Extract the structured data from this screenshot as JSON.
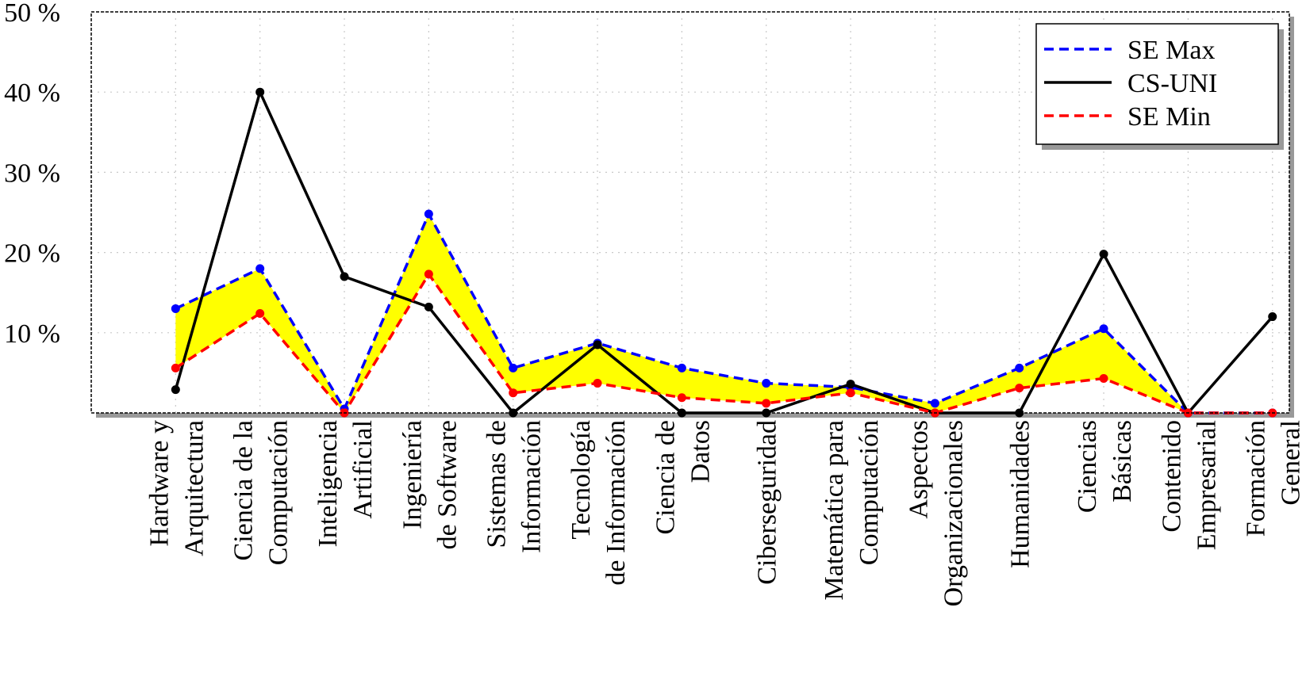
{
  "chart_data": {
    "type": "line",
    "categories": [
      [
        "Hardware y",
        "Arquitectura"
      ],
      [
        "Ciencia de la",
        "Computación"
      ],
      [
        "Inteligencia",
        "Artificial"
      ],
      [
        "Ingeniería",
        "de Software"
      ],
      [
        "Sistemas de",
        "Información"
      ],
      [
        "Tecnología",
        "de Información"
      ],
      [
        "Ciencia de",
        "Datos"
      ],
      [
        "Ciberseguridad"
      ],
      [
        "Matemática para",
        "Computación"
      ],
      [
        "Aspectos",
        "Organizacionales"
      ],
      [
        "Humanidades"
      ],
      [
        "Ciencias",
        "Básicas"
      ],
      [
        "Contenido",
        "Empresarial"
      ],
      [
        "Formación",
        "General"
      ]
    ],
    "series": [
      {
        "name": "SE Max",
        "color": "#0000ff",
        "dashed": true,
        "values": [
          13,
          18,
          0.5,
          24.8,
          5.6,
          8.7,
          5.6,
          3.7,
          3.2,
          1.2,
          5.6,
          10.5,
          0,
          0
        ]
      },
      {
        "name": "CS-UNI",
        "color": "#000000",
        "dashed": false,
        "values": [
          2.9,
          40,
          17,
          13.2,
          0,
          8.5,
          0,
          0,
          3.6,
          0,
          0,
          19.8,
          0,
          12
        ]
      },
      {
        "name": "SE Min",
        "color": "#ff0000",
        "dashed": true,
        "values": [
          5.6,
          12.4,
          0,
          17.3,
          2.5,
          3.7,
          1.9,
          1.2,
          2.5,
          0,
          3.1,
          4.3,
          0,
          0
        ]
      }
    ],
    "fill_between": {
      "series": [
        0,
        2
      ],
      "color": "#ffff00"
    },
    "ylim": [
      0,
      50
    ],
    "yticks": [
      {
        "value": 10,
        "label": "10 %"
      },
      {
        "value": 20,
        "label": "20 %"
      },
      {
        "value": 30,
        "label": "30 %"
      },
      {
        "value": 40,
        "label": "40 %"
      },
      {
        "value": 50,
        "label": "50 %"
      }
    ],
    "grid": true,
    "legend": "upper right"
  }
}
